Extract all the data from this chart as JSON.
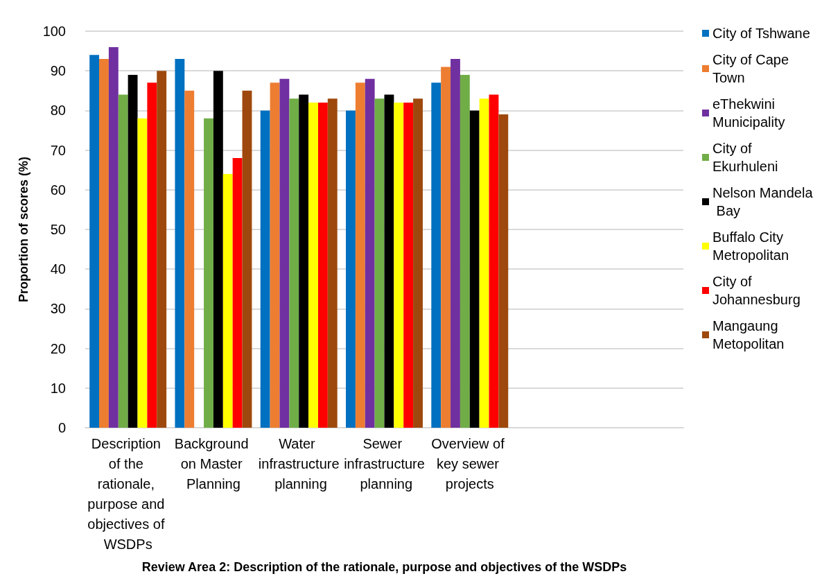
{
  "chart_data": {
    "type": "bar",
    "categories": [
      "Description of the rationale, purpose and objectives of WSDPs",
      "Background on Master Planning",
      "Water infrastructure planning",
      "Sewer infrastructure planning",
      "Overview of key sewer projects",
      null,
      null
    ],
    "series": [
      {
        "name": "City of Tshwane",
        "color": "#0070c0",
        "values": [
          94,
          93,
          80,
          80,
          87,
          null,
          null
        ]
      },
      {
        "name": "City of Cape Town",
        "color": "#ed7d31",
        "values": [
          93,
          85,
          87,
          87,
          91,
          null,
          null
        ]
      },
      {
        "name": "eThekwini Municipality",
        "color": "#7030a0",
        "values": [
          96,
          null,
          88,
          88,
          93,
          null,
          null
        ]
      },
      {
        "name": "City of Ekurhuleni",
        "color": "#70ad47",
        "values": [
          84,
          78,
          83,
          83,
          89,
          null,
          null
        ]
      },
      {
        "name": "Nelson Mandela Bay",
        "color": "#000000",
        "values": [
          89,
          90,
          84,
          84,
          80,
          null,
          null
        ]
      },
      {
        "name": "Buffalo City Metropolitan",
        "color": "#ffff00",
        "values": [
          78,
          64,
          82,
          82,
          83,
          null,
          null
        ]
      },
      {
        "name": "City of Johannesburg",
        "color": "#ff0000",
        "values": [
          87,
          68,
          82,
          82,
          84,
          null,
          null
        ]
      },
      {
        "name": "Mangaung Metopolitan",
        "color": "#9e480e",
        "values": [
          90,
          85,
          83,
          83,
          79,
          null,
          null
        ]
      }
    ],
    "xlabel": "Review Area 2: Description of the rationale, purpose and objectives of the WSDPs",
    "ylabel": "Proportion of scores (%)",
    "ylim": [
      0,
      100
    ],
    "yticks": [
      0,
      10,
      20,
      30,
      40,
      50,
      60,
      70,
      80,
      90,
      100
    ],
    "grid": "y",
    "legend": "right"
  }
}
